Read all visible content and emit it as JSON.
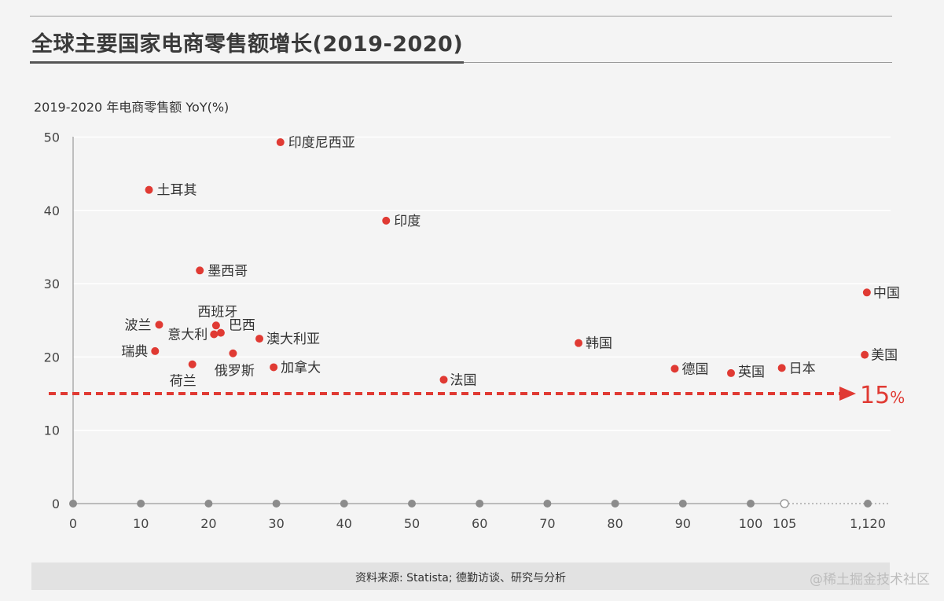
{
  "title": "全球主要国家电商零售额增长(2019-2020)",
  "source": "资料来源: Statista; 德勤访谈、研究与分析",
  "watermark": "@稀土掘金技术社区",
  "colors": {
    "point": "#e03a33",
    "axis": "#9a9a9a",
    "tick_dot": "#8c8c8c",
    "threshold": "#e03a33"
  },
  "chart_data": {
    "type": "scatter",
    "title": "全球主要国家电商零售额增长(2019-2020)",
    "ylabel": "2019-2020 年电商零售额 YoY(%)",
    "xlabel": "",
    "ylim": [
      0,
      50
    ],
    "yticks": [
      0,
      10,
      20,
      30,
      40,
      50
    ],
    "xticks": [
      "0",
      "10",
      "20",
      "30",
      "40",
      "50",
      "60",
      "70",
      "80",
      "90",
      "100",
      "105",
      "1,120"
    ],
    "x_axis_break": "105 to 1,120",
    "threshold": {
      "value": 15,
      "label": "15",
      "unit": "%"
    },
    "points": [
      {
        "name": "印度尼西亚",
        "x": 30.6,
        "y": 49.3
      },
      {
        "name": "土耳其",
        "x": 11.2,
        "y": 42.8
      },
      {
        "name": "印度",
        "x": 46.2,
        "y": 38.6
      },
      {
        "name": "墨西哥",
        "x": 18.7,
        "y": 31.8
      },
      {
        "name": "中国",
        "x": 1109,
        "y": 28.8
      },
      {
        "name": "西班牙",
        "x": 21.1,
        "y": 24.3
      },
      {
        "name": "波兰",
        "x": 12.7,
        "y": 24.4
      },
      {
        "name": "巴西",
        "x": 21.8,
        "y": 23.3
      },
      {
        "name": "意大利",
        "x": 20.8,
        "y": 23.1
      },
      {
        "name": "澳大利亚",
        "x": 27.5,
        "y": 22.5
      },
      {
        "name": "韩国",
        "x": 74.6,
        "y": 21.9
      },
      {
        "name": "瑞典",
        "x": 12.1,
        "y": 20.8
      },
      {
        "name": "俄罗斯",
        "x": 23.6,
        "y": 20.5
      },
      {
        "name": "美国",
        "x": 1083,
        "y": 20.3
      },
      {
        "name": "荷兰",
        "x": 17.6,
        "y": 19.0
      },
      {
        "name": "加拿大",
        "x": 29.6,
        "y": 18.6
      },
      {
        "name": "日本",
        "x": 104.6,
        "y": 18.5
      },
      {
        "name": "德国",
        "x": 88.8,
        "y": 18.4
      },
      {
        "name": "英国",
        "x": 97.1,
        "y": 17.8
      },
      {
        "name": "法国",
        "x": 54.7,
        "y": 16.9
      }
    ]
  }
}
